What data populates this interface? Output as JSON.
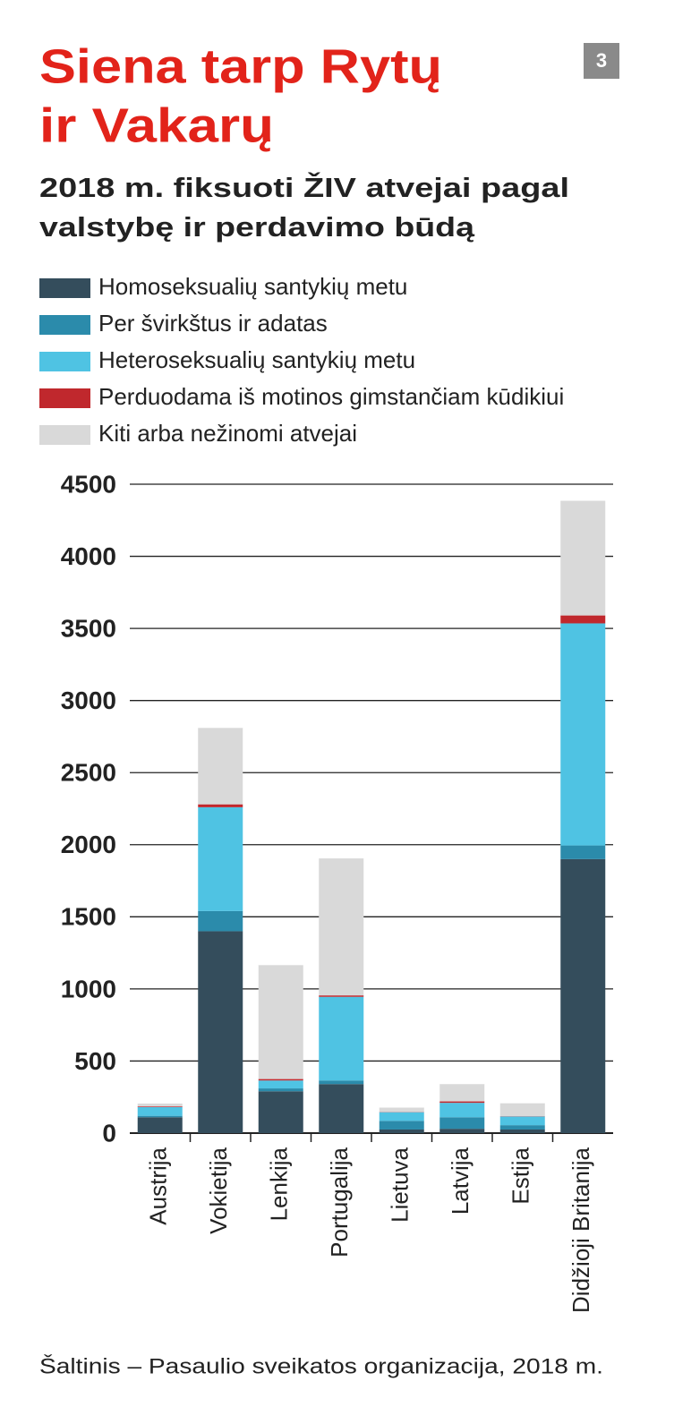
{
  "badge": "3",
  "chart_data": {
    "type": "stacked_bar",
    "title": [
      "Siena tarp Rytų",
      "ir Vakarų"
    ],
    "subtitle": [
      "2018 m. fiksuoti ŽIV atvejai pagal",
      "valstybę ir perdavimo būdą"
    ],
    "source": "Šaltinis – Pasaulio sveikatos organizacija, 2018 m.",
    "categories": [
      "Austrija",
      "Vokietija",
      "Lenkija",
      "Portugalija",
      "Lietuva",
      "Latvija",
      "Estija",
      "Didžioji Britanija"
    ],
    "series": [
      {
        "name": "Homoseksualių santykių metu",
        "color": "#344d5c",
        "values": [
          110,
          1400,
          290,
          340,
          25,
          30,
          25,
          1900
        ]
      },
      {
        "name": "Per švirkštus ir adatas",
        "color": "#2b8bab",
        "values": [
          10,
          140,
          20,
          25,
          60,
          80,
          30,
          95
        ]
      },
      {
        "name": "Heteroseksualių santykių metu",
        "color": "#4fc3e3",
        "values": [
          60,
          720,
          55,
          580,
          60,
          100,
          60,
          1540
        ]
      },
      {
        "name": "Perduodama iš motinos gimstančiam kūdikiui",
        "color": "#c0282d",
        "values": [
          5,
          20,
          10,
          10,
          2,
          10,
          2,
          55
        ]
      },
      {
        "name": "Kiti arba nežinomi atvejai",
        "color": "#d9d9d9",
        "values": [
          20,
          530,
          790,
          950,
          30,
          120,
          90,
          795
        ]
      }
    ],
    "ylim": [
      0,
      4500
    ],
    "yticks": [
      0,
      500,
      1000,
      1500,
      2000,
      2500,
      3000,
      3500,
      4000,
      4500
    ],
    "grid": true
  }
}
